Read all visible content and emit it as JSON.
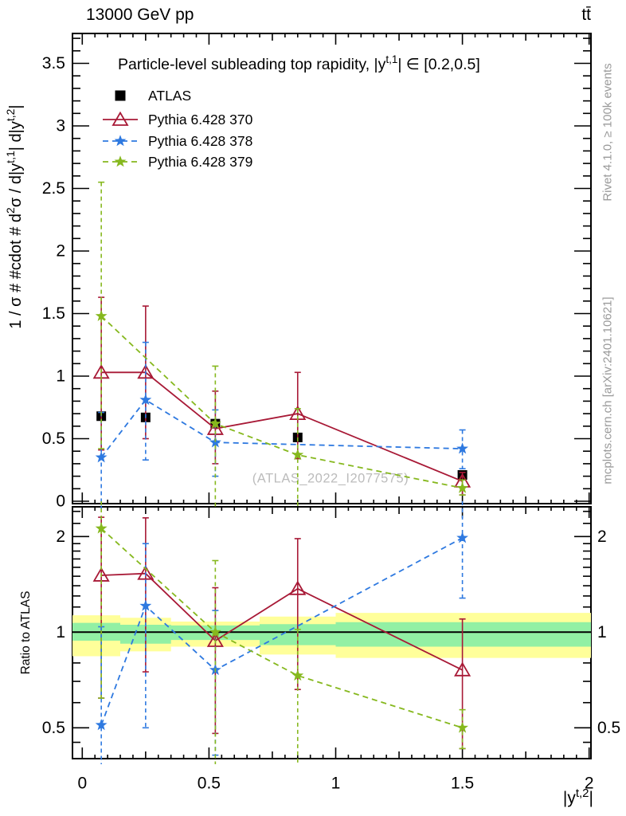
{
  "header": {
    "left": "13000 GeV pp",
    "right": "tt̄"
  },
  "right_margin": {
    "top": "Rivet 4.1.0, ≥ 100k events",
    "bottom": "mcplots.cern.ch [arXiv:2401.10621]"
  },
  "watermark": "(ATLAS_2022_I2077575)",
  "chart_data": {
    "type": "line",
    "style": "errorbar-points-with-ratio-panel",
    "x": {
      "label": "|y^{t,2}|",
      "label_runs": [
        {
          "t": "|y"
        },
        {
          "t": "t,2",
          "sup": true
        },
        {
          "t": "|"
        }
      ],
      "lim": [
        -0.04,
        2.01
      ],
      "ticks": [
        0,
        0.5,
        1,
        1.5,
        2
      ],
      "tick_labels": [
        "0",
        "0.5",
        "1",
        "1.5",
        "2"
      ],
      "minor_step": 0.05,
      "medium_step": 0.25,
      "bin_edges": [
        0,
        0.15,
        0.35,
        0.7,
        1.0,
        2.0
      ],
      "bin_centers": [
        0.075,
        0.25,
        0.525,
        0.85,
        1.5
      ]
    },
    "top_panel": {
      "title": "Particle-level subleading top rapidity, |y^{t,1}| ∈ [0.2,0.5]",
      "title_runs": [
        {
          "t": "Particle-level subleading top rapidity, |y"
        },
        {
          "t": "t,1",
          "sup": true
        },
        {
          "t": "| ∈ [0.2,0.5]"
        }
      ],
      "ytitle": "1 / σ # #cdot # d²σ / d|y^{t,1}| d|y^{t,2}|",
      "ytitle_runs": [
        {
          "t": "1 / σ # #cdot # d"
        },
        {
          "t": "2",
          "sup": true
        },
        {
          "t": "σ / d|y"
        },
        {
          "t": "t,1",
          "sup": true
        },
        {
          "t": "| d|y"
        },
        {
          "t": "t,2",
          "sup": true
        },
        {
          "t": "|"
        }
      ],
      "scale": "linear",
      "ylim": [
        0,
        3.73
      ],
      "yticks": [
        0,
        0.5,
        1,
        1.5,
        2,
        2.5,
        3,
        3.5
      ],
      "ytick_labels": [
        "0",
        "0.5",
        "1",
        "1.5",
        "2",
        "2.5",
        "3",
        "3.5"
      ],
      "minor_step": 0.1,
      "grid": false
    },
    "bottom_panel": {
      "ylabel": "Ratio to ATLAS",
      "scale": "log",
      "ylim": [
        0.4,
        2.47
      ],
      "yticks": [
        0.5,
        1,
        2
      ],
      "ytick_labels": [
        "0.5",
        "1",
        "2"
      ],
      "minor_ticks": [
        0.45,
        0.6,
        0.7,
        0.8,
        0.9,
        1.1,
        1.2,
        1.3,
        1.4,
        1.5,
        1.6,
        1.7,
        1.8,
        1.9,
        2.2,
        2.4
      ],
      "ref_line": 1,
      "band_outer": {
        "color": "#ffff9a",
        "by_bin": [
          [
            0.84,
            1.13
          ],
          [
            0.87,
            1.11
          ],
          [
            0.9,
            1.08
          ],
          [
            0.85,
            1.12
          ],
          [
            0.83,
            1.15
          ]
        ]
      },
      "band_inner": {
        "color": "#92f0a4",
        "by_bin": [
          [
            0.94,
            1.07
          ],
          [
            0.92,
            1.055
          ],
          [
            0.945,
            1.05
          ],
          [
            0.91,
            1.06
          ],
          [
            0.9,
            1.075
          ]
        ]
      }
    },
    "legend_position": "top-left",
    "series": [
      {
        "label": "ATLAS",
        "color": "#000000",
        "marker": "square",
        "line": "none",
        "values": [
          0.68,
          0.67,
          0.62,
          0.51,
          0.21
        ],
        "err_lo": [
          0.66,
          0.65,
          0.6,
          0.49,
          0.2
        ],
        "err_hi": [
          0.7,
          0.69,
          0.64,
          0.53,
          0.22
        ],
        "is_reference": true
      },
      {
        "label": "Pythia 6.428 370",
        "color": "#a81936",
        "marker": "triangle-open",
        "line": "solid",
        "values": [
          1.03,
          1.03,
          0.58,
          0.7,
          0.16
        ],
        "err_lo": [
          0.41,
          0.5,
          0.3,
          0.34,
          0.05
        ],
        "err_hi": [
          1.63,
          1.56,
          0.88,
          1.03,
          0.23
        ],
        "ratio": [
          1.51,
          1.53,
          0.94,
          1.37,
          0.76
        ],
        "ratio_err_lo": [
          0.62,
          0.75,
          0.48,
          0.66,
          0.43
        ],
        "ratio_err_hi": [
          2.3,
          2.29,
          1.38,
          1.97,
          1.1
        ]
      },
      {
        "label": "Pythia 6.428 378",
        "color": "#2e79e0",
        "marker": "star",
        "line": "dashed",
        "values": [
          0.35,
          0.81,
          0.47,
          null,
          0.42
        ],
        "err_lo": [
          -0.1,
          0.33,
          0.2,
          null,
          0.26
        ],
        "err_hi": [
          0.71,
          1.27,
          0.73,
          null,
          0.57
        ],
        "ratio": [
          0.51,
          1.21,
          0.76,
          null,
          1.98
        ],
        "ratio_err_lo": [
          0.3,
          0.5,
          0.41,
          null,
          1.28
        ],
        "ratio_err_hi": [
          1.04,
          1.9,
          1.17,
          null,
          2.6
        ]
      },
      {
        "label": "Pythia 6.428 379",
        "color": "#86b81e",
        "marker": "star",
        "line": "dashed",
        "values": [
          1.48,
          null,
          0.62,
          0.37,
          0.105
        ],
        "err_lo": [
          0.42,
          null,
          -0.1,
          -0.1,
          0.05
        ],
        "err_hi": [
          2.55,
          null,
          1.08,
          0.74,
          0.17
        ],
        "ratio": [
          2.12,
          null,
          1.0,
          0.73,
          0.5
        ],
        "ratio_err_lo": [
          0.62,
          null,
          0.3,
          0.3,
          0.43
        ],
        "ratio_err_hi": [
          2.6,
          null,
          1.68,
          1.02,
          0.57
        ]
      }
    ]
  }
}
